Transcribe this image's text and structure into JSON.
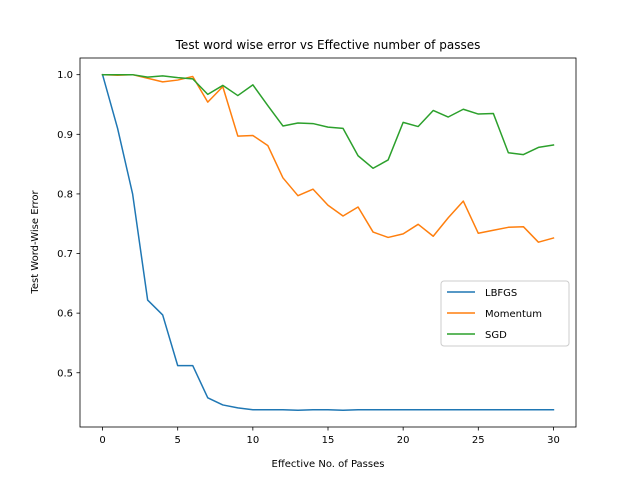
{
  "chart_data": {
    "type": "line",
    "title": "Test word wise error vs Effective number of passes",
    "xlabel": "Effective No. of Passes",
    "ylabel": "Test Word-Wise Error",
    "xlim": [
      -1.5,
      31.5
    ],
    "ylim": [
      0.409,
      1.028
    ],
    "xticks": [
      0,
      5,
      10,
      15,
      20,
      25,
      30
    ],
    "yticks": [
      0.5,
      0.6,
      0.7,
      0.8,
      0.9,
      1.0
    ],
    "xtick_labels": [
      "0",
      "5",
      "10",
      "15",
      "20",
      "25",
      "30"
    ],
    "ytick_labels": [
      "0.5",
      "0.6",
      "0.7",
      "0.8",
      "0.9",
      "1.0"
    ],
    "grid": false,
    "legend_position": "center-right",
    "x": [
      0,
      1,
      2,
      3,
      4,
      5,
      6,
      7,
      8,
      9,
      10,
      11,
      12,
      13,
      14,
      15,
      16,
      17,
      18,
      19,
      20,
      21,
      22,
      23,
      24,
      25,
      26,
      27,
      28,
      29,
      30
    ],
    "series": [
      {
        "name": "LBFGS",
        "color": "#1f77b4",
        "values": [
          1.0,
          0.91,
          0.8,
          0.622,
          0.597,
          0.512,
          0.512,
          0.458,
          0.446,
          0.441,
          0.438,
          0.438,
          0.438,
          0.437,
          0.438,
          0.438,
          0.437,
          0.438,
          0.438,
          0.438,
          0.438,
          0.438,
          0.438,
          0.438,
          0.438,
          0.438,
          0.438,
          0.438,
          0.438,
          0.438,
          0.438
        ]
      },
      {
        "name": "Momentum",
        "color": "#ff7f0e",
        "values": [
          1.0,
          0.999,
          1.0,
          0.994,
          0.988,
          0.991,
          0.997,
          0.954,
          0.98,
          0.897,
          0.898,
          0.881,
          0.827,
          0.797,
          0.808,
          0.781,
          0.763,
          0.778,
          0.736,
          0.727,
          0.733,
          0.749,
          0.729,
          0.76,
          0.788,
          0.734,
          0.739,
          0.744,
          0.745,
          0.719,
          0.726
        ]
      },
      {
        "name": "SGD",
        "color": "#2ca02c",
        "values": [
          1.0,
          1.0,
          1.0,
          0.996,
          0.998,
          0.995,
          0.993,
          0.967,
          0.982,
          0.965,
          0.983,
          0.948,
          0.914,
          0.919,
          0.918,
          0.912,
          0.91,
          0.864,
          0.843,
          0.857,
          0.92,
          0.913,
          0.94,
          0.929,
          0.942,
          0.934,
          0.935,
          0.869,
          0.866,
          0.878,
          0.882
        ]
      }
    ]
  }
}
